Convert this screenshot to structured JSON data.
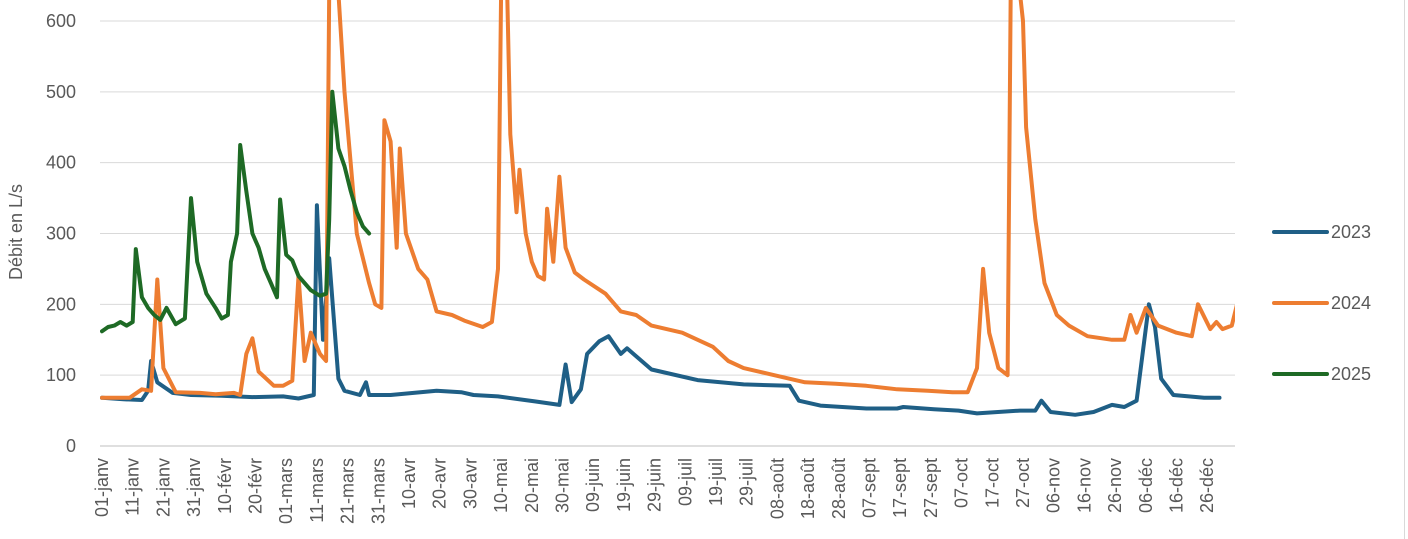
{
  "chart_data": {
    "type": "line",
    "title": "",
    "xlabel": "",
    "ylabel": "Débit en L/s",
    "ylim": [
      0,
      600
    ],
    "yticks": [
      0,
      100,
      200,
      300,
      400,
      500,
      600
    ],
    "grid": "horizontal",
    "legend_position": "right",
    "x_tick_labels": [
      "01-janv",
      "11-janv",
      "21-janv",
      "31-janv",
      "10-févr",
      "20-févr",
      "01-mars",
      "11-mars",
      "21-mars",
      "31-mars",
      "10-avr",
      "20-avr",
      "30-avr",
      "10-mai",
      "20-mai",
      "30-mai",
      "09-juin",
      "19-juin",
      "29-juin",
      "09-juil",
      "19-juil",
      "29-juil",
      "08-août",
      "18-août",
      "28-août",
      "07-sept",
      "17-sept",
      "27-sept",
      "07-oct",
      "17-oct",
      "27-oct",
      "06-nov",
      "16-nov",
      "26-nov",
      "06-déc",
      "16-déc",
      "26-déc"
    ],
    "x_unit": "day of year (1-365)",
    "series": [
      {
        "name": "2023",
        "color": "#1f5f86",
        "points": [
          [
            1,
            68
          ],
          [
            8,
            66
          ],
          [
            14,
            65
          ],
          [
            16,
            78
          ],
          [
            17,
            120
          ],
          [
            19,
            90
          ],
          [
            24,
            75
          ],
          [
            30,
            72
          ],
          [
            40,
            71
          ],
          [
            50,
            69
          ],
          [
            60,
            70
          ],
          [
            65,
            67
          ],
          [
            70,
            72
          ],
          [
            71,
            340
          ],
          [
            73,
            150
          ],
          [
            75,
            265
          ],
          [
            78,
            95
          ],
          [
            80,
            78
          ],
          [
            85,
            72
          ],
          [
            87,
            90
          ],
          [
            88,
            72
          ],
          [
            95,
            72
          ],
          [
            110,
            78
          ],
          [
            118,
            76
          ],
          [
            122,
            72
          ],
          [
            130,
            70
          ],
          [
            142,
            63
          ],
          [
            150,
            58
          ],
          [
            152,
            115
          ],
          [
            154,
            62
          ],
          [
            157,
            80
          ],
          [
            159,
            130
          ],
          [
            163,
            148
          ],
          [
            166,
            155
          ],
          [
            170,
            130
          ],
          [
            172,
            138
          ],
          [
            180,
            108
          ],
          [
            195,
            93
          ],
          [
            210,
            87
          ],
          [
            225,
            85
          ],
          [
            228,
            64
          ],
          [
            235,
            57
          ],
          [
            250,
            53
          ],
          [
            260,
            53
          ],
          [
            262,
            55
          ],
          [
            272,
            52
          ],
          [
            280,
            50
          ],
          [
            286,
            46
          ],
          [
            300,
            50
          ],
          [
            305,
            50
          ],
          [
            307,
            64
          ],
          [
            310,
            48
          ],
          [
            318,
            44
          ],
          [
            324,
            48
          ],
          [
            330,
            58
          ],
          [
            334,
            55
          ],
          [
            338,
            64
          ],
          [
            342,
            200
          ],
          [
            344,
            168
          ],
          [
            346,
            95
          ],
          [
            350,
            72
          ],
          [
            355,
            70
          ],
          [
            360,
            68
          ],
          [
            365,
            68
          ]
        ]
      },
      {
        "name": "2024",
        "color": "#ed7d31",
        "points": [
          [
            1,
            68
          ],
          [
            10,
            68
          ],
          [
            14,
            80
          ],
          [
            17,
            78
          ],
          [
            19,
            235
          ],
          [
            21,
            110
          ],
          [
            25,
            76
          ],
          [
            33,
            75
          ],
          [
            38,
            73
          ],
          [
            44,
            75
          ],
          [
            46,
            72
          ],
          [
            48,
            130
          ],
          [
            50,
            152
          ],
          [
            52,
            105
          ],
          [
            57,
            85
          ],
          [
            60,
            85
          ],
          [
            63,
            92
          ],
          [
            65,
            240
          ],
          [
            67,
            120
          ],
          [
            69,
            160
          ],
          [
            72,
            130
          ],
          [
            74,
            120
          ],
          [
            75,
            640
          ],
          [
            78,
            640
          ],
          [
            80,
            500
          ],
          [
            84,
            300
          ],
          [
            88,
            230
          ],
          [
            90,
            200
          ],
          [
            92,
            195
          ],
          [
            93,
            460
          ],
          [
            95,
            430
          ],
          [
            97,
            280
          ],
          [
            98,
            420
          ],
          [
            100,
            300
          ],
          [
            104,
            250
          ],
          [
            107,
            235
          ],
          [
            110,
            190
          ],
          [
            115,
            185
          ],
          [
            119,
            177
          ],
          [
            125,
            168
          ],
          [
            128,
            175
          ],
          [
            130,
            250
          ],
          [
            131,
            640
          ],
          [
            133,
            640
          ],
          [
            134,
            440
          ],
          [
            136,
            330
          ],
          [
            137,
            390
          ],
          [
            139,
            300
          ],
          [
            141,
            260
          ],
          [
            143,
            240
          ],
          [
            145,
            235
          ],
          [
            146,
            335
          ],
          [
            148,
            260
          ],
          [
            150,
            380
          ],
          [
            152,
            280
          ],
          [
            155,
            245
          ],
          [
            158,
            235
          ],
          [
            165,
            215
          ],
          [
            170,
            190
          ],
          [
            175,
            185
          ],
          [
            180,
            170
          ],
          [
            190,
            160
          ],
          [
            200,
            140
          ],
          [
            205,
            120
          ],
          [
            210,
            110
          ],
          [
            220,
            100
          ],
          [
            230,
            90
          ],
          [
            240,
            88
          ],
          [
            250,
            85
          ],
          [
            260,
            80
          ],
          [
            270,
            78
          ],
          [
            278,
            76
          ],
          [
            283,
            76
          ],
          [
            286,
            110
          ],
          [
            288,
            250
          ],
          [
            290,
            160
          ],
          [
            293,
            110
          ],
          [
            296,
            100
          ],
          [
            297,
            640
          ],
          [
            300,
            640
          ],
          [
            301,
            600
          ],
          [
            302,
            450
          ],
          [
            305,
            320
          ],
          [
            308,
            230
          ],
          [
            312,
            185
          ],
          [
            316,
            170
          ],
          [
            322,
            155
          ],
          [
            330,
            150
          ],
          [
            334,
            150
          ],
          [
            336,
            185
          ],
          [
            338,
            160
          ],
          [
            341,
            195
          ],
          [
            345,
            170
          ],
          [
            351,
            160
          ],
          [
            356,
            155
          ],
          [
            358,
            200
          ],
          [
            362,
            165
          ],
          [
            364,
            175
          ],
          [
            366,
            165
          ],
          [
            369,
            170
          ],
          [
            371,
            205
          ],
          [
            374,
            180
          ],
          [
            376,
            170
          ],
          [
            381,
            165
          ]
        ]
      },
      {
        "name": "2025",
        "color": "#1e6a25",
        "points": [
          [
            1,
            162
          ],
          [
            3,
            168
          ],
          [
            5,
            170
          ],
          [
            7,
            175
          ],
          [
            9,
            170
          ],
          [
            11,
            175
          ],
          [
            12,
            278
          ],
          [
            14,
            210
          ],
          [
            16,
            195
          ],
          [
            18,
            185
          ],
          [
            20,
            178
          ],
          [
            22,
            195
          ],
          [
            25,
            172
          ],
          [
            28,
            180
          ],
          [
            30,
            350
          ],
          [
            32,
            260
          ],
          [
            35,
            215
          ],
          [
            38,
            195
          ],
          [
            40,
            180
          ],
          [
            42,
            185
          ],
          [
            43,
            260
          ],
          [
            45,
            300
          ],
          [
            46,
            425
          ],
          [
            48,
            360
          ],
          [
            50,
            300
          ],
          [
            52,
            280
          ],
          [
            54,
            250
          ],
          [
            56,
            230
          ],
          [
            58,
            210
          ],
          [
            59,
            348
          ],
          [
            61,
            270
          ],
          [
            63,
            262
          ],
          [
            65,
            240
          ],
          [
            67,
            230
          ],
          [
            69,
            220
          ],
          [
            72,
            212
          ],
          [
            74,
            215
          ],
          [
            75,
            320
          ],
          [
            76,
            500
          ],
          [
            78,
            420
          ],
          [
            80,
            395
          ],
          [
            82,
            360
          ],
          [
            84,
            330
          ],
          [
            86,
            310
          ],
          [
            88,
            300
          ]
        ]
      }
    ]
  }
}
